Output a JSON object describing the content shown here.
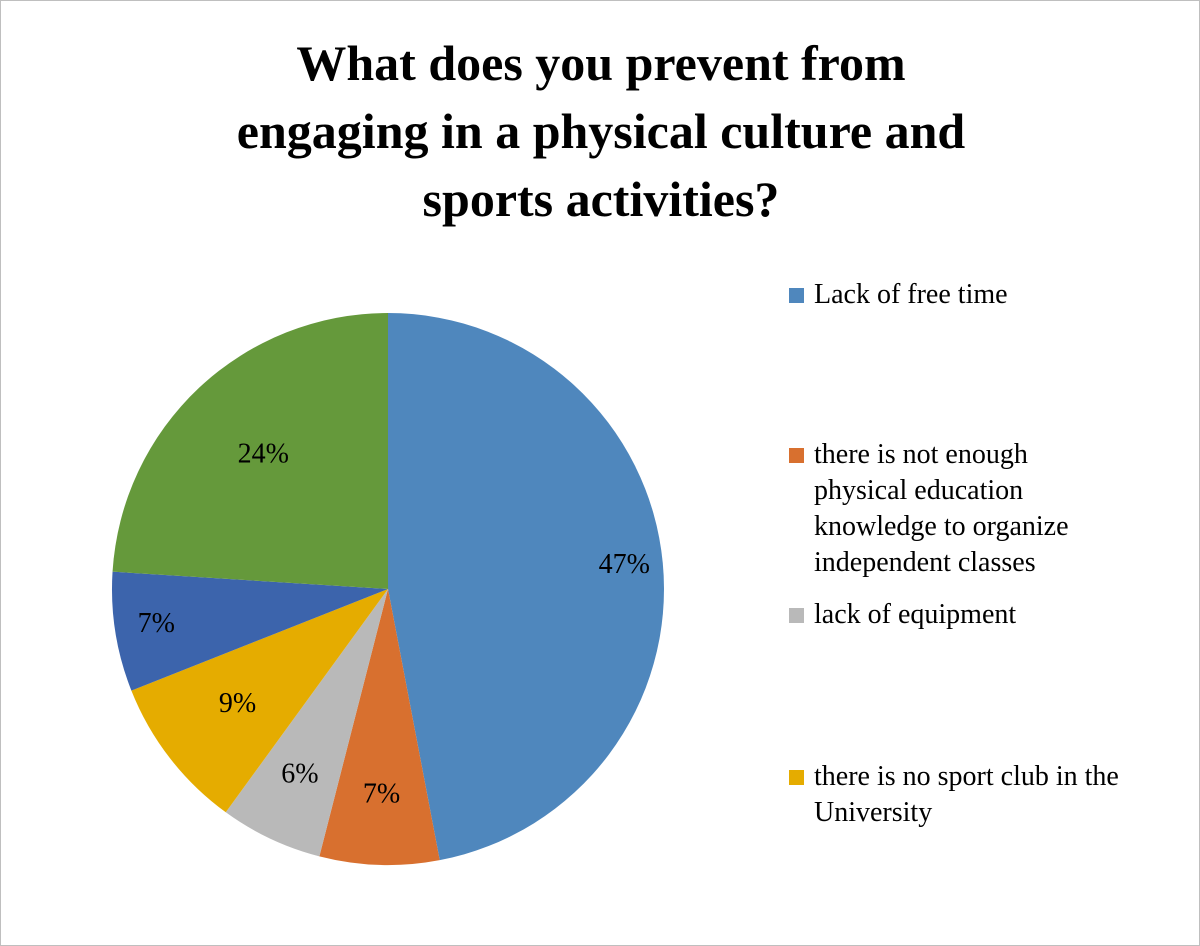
{
  "chart_data": {
    "type": "pie",
    "title": "What does  you prevent  from\nengaging in a physical culture and\nsports activities?",
    "slices": [
      {
        "label": "Lack of free time",
        "value": 47,
        "display": "47%",
        "color": "#4f87bd"
      },
      {
        "label": "there is not enough physical education knowledge to organize independent classes",
        "value": 7,
        "display": "7%",
        "color": "#d8702f"
      },
      {
        "label": "lack of equipment",
        "value": 6,
        "display": "6%",
        "color": "#b9b9b9"
      },
      {
        "label": "there is no sport club in the University",
        "value": 9,
        "display": "9%",
        "color": "#e5ac00"
      },
      {
        "label": "",
        "value": 7,
        "display": "7%",
        "color": "#3c64ac"
      },
      {
        "label": "",
        "value": 24,
        "display": "24%",
        "color": "#65993b"
      }
    ],
    "legend": [
      {
        "text": "Lack of free time",
        "color": "#4f87bd"
      },
      {
        "text": "there is not enough\nphysical education\nknowledge to organize\nindependent classes",
        "color": "#d8702f"
      },
      {
        "text": "lack of equipment",
        "color": "#b9b9b9"
      },
      {
        "text": "there is no sport club in the\nUniversity",
        "color": "#e5ac00"
      }
    ],
    "legend_position": "right"
  }
}
